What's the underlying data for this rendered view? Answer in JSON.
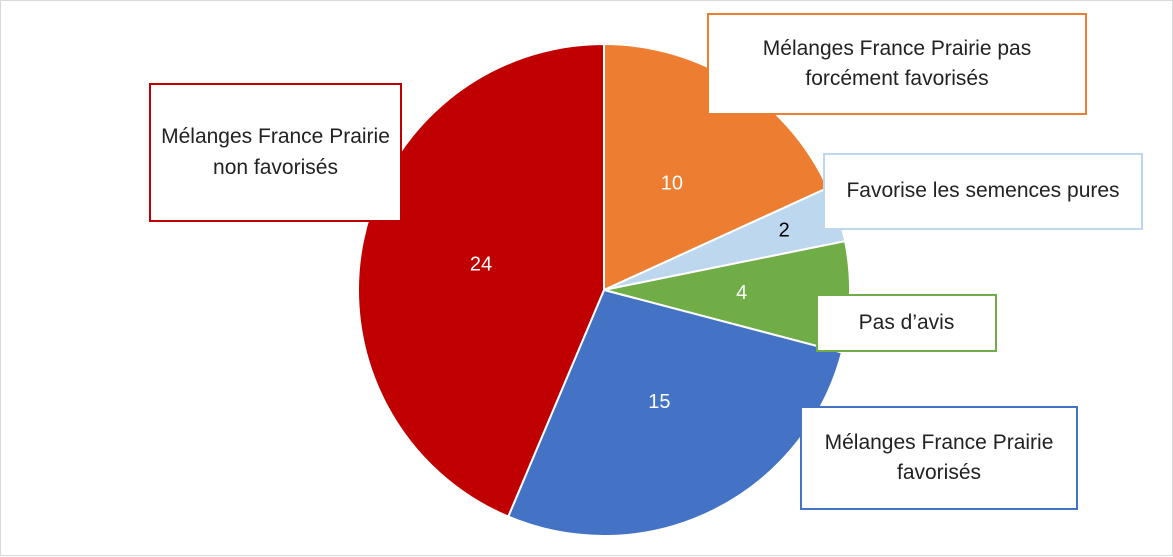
{
  "chart_data": {
    "type": "pie",
    "categories": [
      "Mélanges France Prairie pas forcément  favorisés",
      "Favorise les semences pures",
      "Pas d’avis",
      "Mélanges France Prairie favorisés",
      "Mélanges France Prairie non favorisés"
    ],
    "values": [
      10,
      2,
      4,
      15,
      24
    ],
    "colors": [
      "#ed7d31",
      "#bdd7ee",
      "#70ad47",
      "#4472c4",
      "#c00000"
    ]
  }
}
